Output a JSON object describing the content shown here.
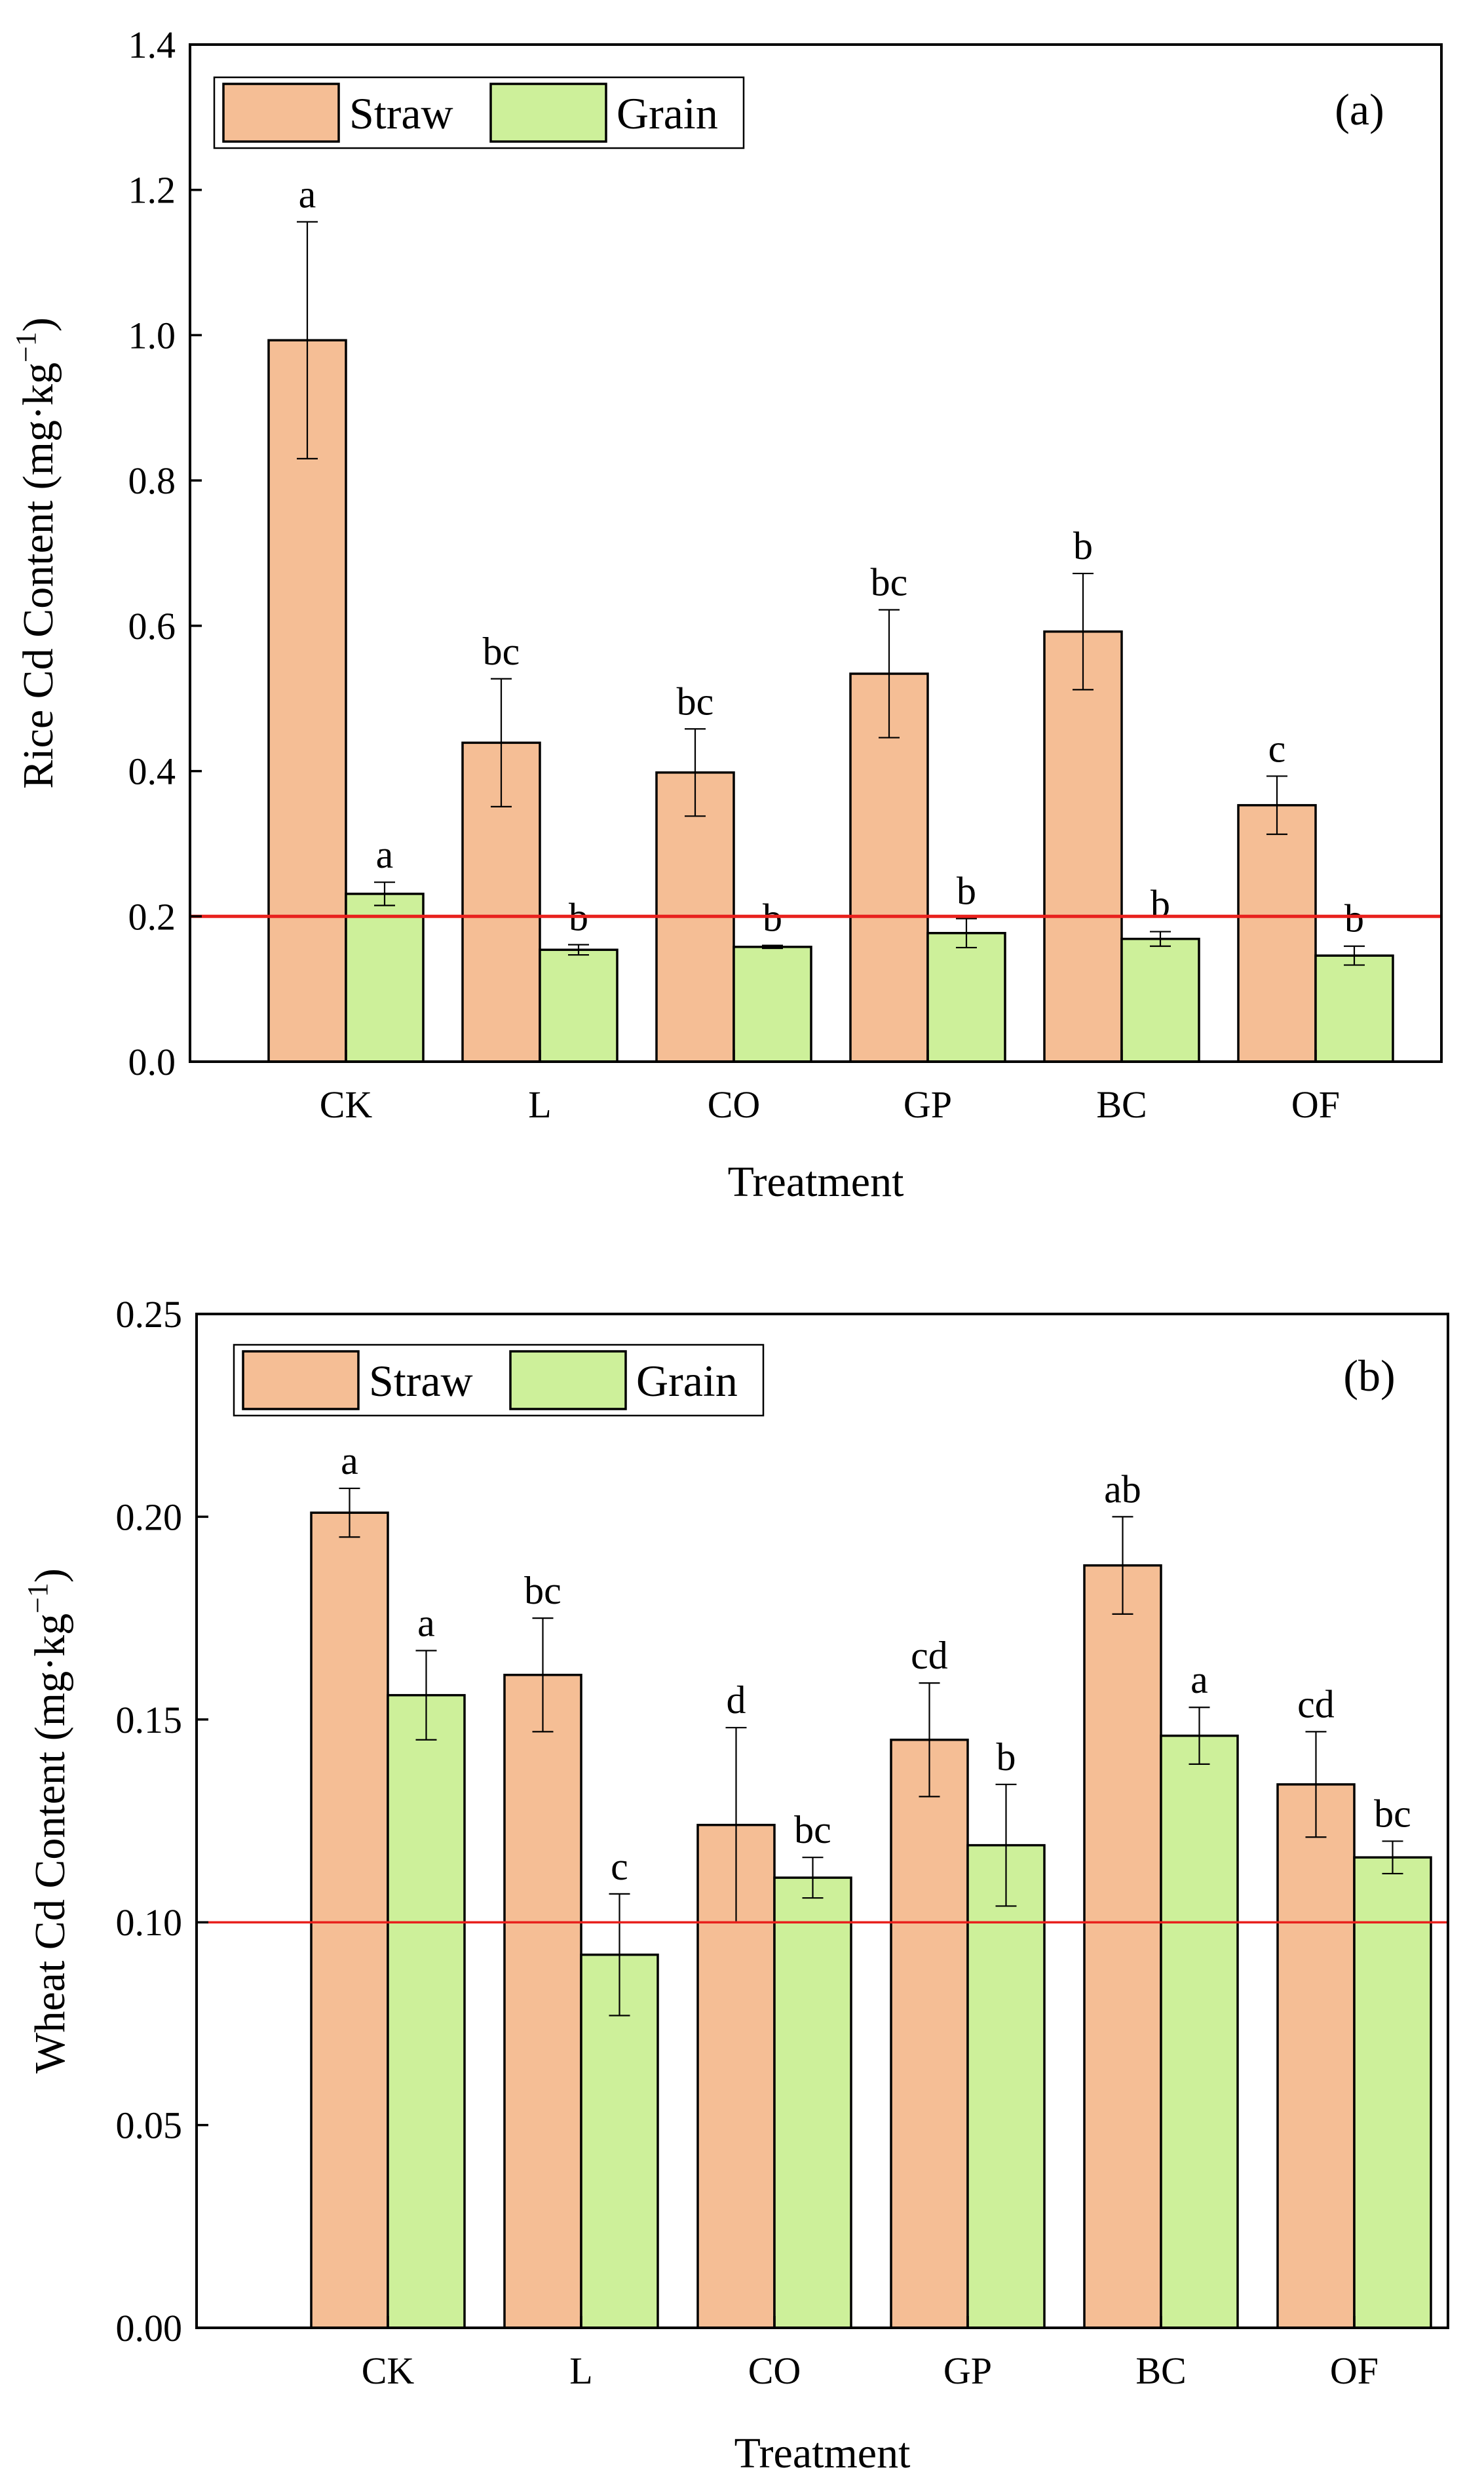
{
  "chart_data": [
    {
      "type": "bar",
      "panel_label": "(a)",
      "categories": [
        "CK",
        "L",
        "CO",
        "GP",
        "BC",
        "OF"
      ],
      "xlabel": "Treatment",
      "ylabel": "Rice Cd Content (mg·kg",
      "ylabel_sup": "−1",
      "ylabel_close": ")",
      "ylim": [
        0,
        1.4
      ],
      "yticks": [
        0.0,
        0.2,
        0.4,
        0.6,
        0.8,
        1.0,
        1.2,
        1.4
      ],
      "ytick_labels": [
        "0.0",
        "0.2",
        "0.4",
        "0.6",
        "0.8",
        "1.0",
        "1.2",
        "1.4"
      ],
      "reference_line": {
        "value": 0.2,
        "color": "#e8211d"
      },
      "legend_position": "top-left",
      "series": [
        {
          "name": "Straw",
          "color": "#f5be95",
          "values": [
            0.993,
            0.439,
            0.398,
            0.534,
            0.592,
            0.353
          ],
          "errors": [
            0.163,
            0.088,
            0.06,
            0.088,
            0.08,
            0.04
          ],
          "labels": [
            "a",
            "bc",
            "bc",
            "bc",
            "b",
            "c"
          ]
        },
        {
          "name": "Grain",
          "color": "#cdf09a",
          "values": [
            0.231,
            0.154,
            0.158,
            0.177,
            0.169,
            0.146
          ],
          "errors": [
            0.016,
            0.007,
            0.002,
            0.02,
            0.01,
            0.013
          ],
          "labels": [
            "a",
            "b",
            "b",
            "b",
            "b",
            "b"
          ]
        }
      ]
    },
    {
      "type": "bar",
      "panel_label": "(b)",
      "categories": [
        "CK",
        "L",
        "CO",
        "GP",
        "BC",
        "OF"
      ],
      "xlabel": "Treatment",
      "ylabel": "Wheat Cd Content (mg·kg",
      "ylabel_sup": "−1",
      "ylabel_close": ")",
      "ylim": [
        0,
        0.25
      ],
      "yticks": [
        0.0,
        0.05,
        0.1,
        0.15,
        0.2,
        0.25
      ],
      "ytick_labels": [
        "0.00",
        "0.05",
        "0.10",
        "0.15",
        "0.20",
        "0.25"
      ],
      "reference_line": {
        "value": 0.1,
        "color": "#e8211d"
      },
      "legend_position": "top-left",
      "series": [
        {
          "name": "Straw",
          "color": "#f5be95",
          "values": [
            0.201,
            0.161,
            0.124,
            0.145,
            0.188,
            0.134
          ],
          "errors": [
            0.006,
            0.014,
            0.024,
            0.014,
            0.012,
            0.013
          ],
          "labels": [
            "a",
            "bc",
            "d",
            "cd",
            "ab",
            "cd"
          ]
        },
        {
          "name": "Grain",
          "color": "#cdf09a",
          "values": [
            0.156,
            0.092,
            0.111,
            0.119,
            0.146,
            0.116
          ],
          "errors": [
            0.011,
            0.015,
            0.005,
            0.015,
            0.007,
            0.004
          ],
          "labels": [
            "a",
            "c",
            "bc",
            "b",
            "a",
            "bc"
          ]
        }
      ]
    }
  ]
}
